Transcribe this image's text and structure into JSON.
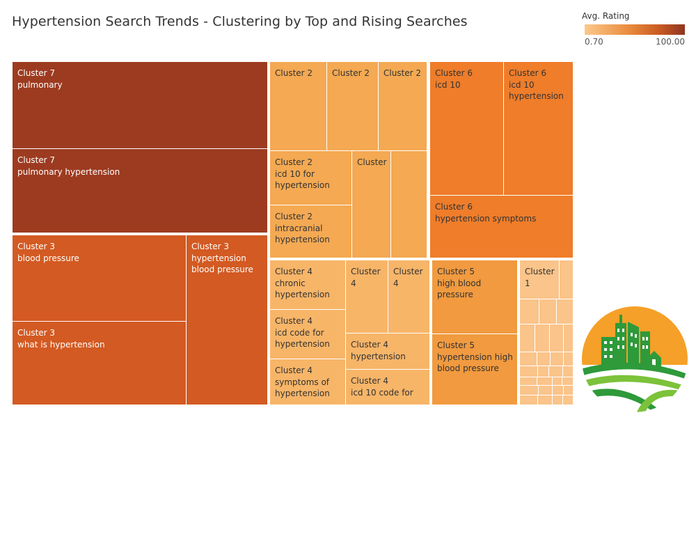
{
  "title": "Hypertension Search Trends - Clustering by Top and Rising Searches",
  "legend": {
    "title": "Avg. Rating",
    "min_label": "0.70",
    "max_label": "100.00"
  },
  "colors": {
    "darkest": "#9d3b20",
    "dark": "#d35a22",
    "mid": "#ef7d2a",
    "mid_light": "#f19a3f",
    "light": "#f4a952",
    "lighter": "#f7b568",
    "lightest": "#fac48a"
  },
  "logo": {
    "icon": "city-farm-logo-icon"
  },
  "chart_data": {
    "type": "treemap",
    "color_measure": "Avg. Rating",
    "color_range": [
      0.7,
      100.0
    ],
    "tiles": [
      {
        "name": "tile-c7-pulmonary",
        "label": "Cluster 7\npulmonary",
        "color": "#9d3b20",
        "text": "dark"
      },
      {
        "name": "tile-c7-pulmonary-hypertension",
        "label": "Cluster 7\npulmonary hypertension",
        "color": "#9d3b20",
        "text": "dark"
      },
      {
        "name": "tile-c3-blood-pressure",
        "label": "Cluster 3\nblood pressure",
        "color": "#d35a22",
        "text": "dark"
      },
      {
        "name": "tile-c3-what-is",
        "label": "Cluster 3\nwhat is hypertension",
        "color": "#d35a22",
        "text": "dark"
      },
      {
        "name": "tile-c3-hbp",
        "label": "Cluster 3\nhypertension\nblood pressure",
        "color": "#d35a22",
        "text": "dark"
      },
      {
        "name": "tile-c2-a",
        "label": "Cluster 2",
        "color": "#f4a952",
        "text": "light"
      },
      {
        "name": "tile-c2-b",
        "label": "Cluster 2",
        "color": "#f4a952",
        "text": "light"
      },
      {
        "name": "tile-c2-c",
        "label": "Cluster 2",
        "color": "#f4a952",
        "text": "light"
      },
      {
        "name": "tile-c2-icd10",
        "label": "Cluster 2\nicd 10 for\nhypertension",
        "color": "#f4a952",
        "text": "light"
      },
      {
        "name": "tile-c2-intracranial",
        "label": "Cluster 2\nintracranial\nhypertension",
        "color": "#f4a952",
        "text": "light"
      },
      {
        "name": "tile-c2-narrow",
        "label": "Cluster",
        "color": "#f4a952",
        "text": "light"
      },
      {
        "name": "tile-c2-thin",
        "label": "",
        "color": "#f4a952",
        "text": "light"
      },
      {
        "name": "tile-c6-icd10",
        "label": "Cluster 6\nicd 10",
        "color": "#ef7d2a",
        "text": "light"
      },
      {
        "name": "tile-c6-icd10-htn",
        "label": "Cluster 6\nicd 10\nhypertension",
        "color": "#ef7d2a",
        "text": "light"
      },
      {
        "name": "tile-c6-symptoms",
        "label": "Cluster 6\nhypertension symptoms",
        "color": "#ef7d2a",
        "text": "light"
      },
      {
        "name": "tile-c4-chronic",
        "label": "Cluster 4\nchronic\nhypertension",
        "color": "#f7b568",
        "text": "light"
      },
      {
        "name": "tile-c4-icd-code",
        "label": "Cluster 4\nicd code for\nhypertension",
        "color": "#f7b568",
        "text": "light"
      },
      {
        "name": "tile-c4-symptoms",
        "label": "Cluster 4\nsymptoms of\nhypertension",
        "color": "#f7b568",
        "text": "light"
      },
      {
        "name": "tile-c4-a",
        "label": "Cluster\n4",
        "color": "#f7b568",
        "text": "light"
      },
      {
        "name": "tile-c4-b",
        "label": "Cluster\n4",
        "color": "#f7b568",
        "text": "light"
      },
      {
        "name": "tile-c4-hypertension",
        "label": "Cluster 4\nhypertension",
        "color": "#f7b568",
        "text": "light"
      },
      {
        "name": "tile-c4-icd10-code",
        "label": "Cluster 4\nicd 10 code for",
        "color": "#f7b568",
        "text": "light"
      },
      {
        "name": "tile-c5-hbp",
        "label": "Cluster 5\nhigh blood\npressure",
        "color": "#f19a3f",
        "text": "light"
      },
      {
        "name": "tile-c5-htn-hbp",
        "label": "Cluster 5\nhypertension high\nblood pressure",
        "color": "#f19a3f",
        "text": "light"
      },
      {
        "name": "tile-c1-main",
        "label": "Cluster\n1",
        "color": "#fac48a",
        "text": "light"
      },
      {
        "name": "tile-c1-side",
        "label": "",
        "color": "#fac48a",
        "text": "light"
      },
      {
        "name": "tile-c1-small",
        "label": "",
        "color": "#fac48a",
        "text": "light"
      }
    ]
  }
}
